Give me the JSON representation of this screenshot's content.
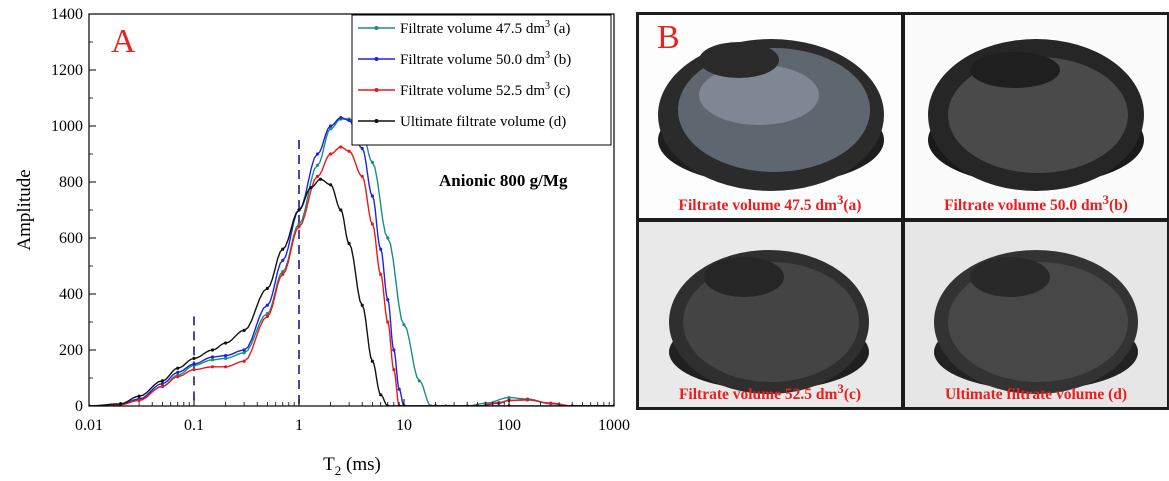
{
  "chart_data": {
    "type": "line",
    "panel_label": "A",
    "xlabel_main": "T",
    "xlabel_sub": "2",
    "xlabel_unit": " (ms)",
    "ylabel": "Amplitude",
    "xscale": "log",
    "xlim": [
      0.01,
      1000
    ],
    "ylim": [
      0,
      1400
    ],
    "xticks": [
      0.01,
      0.1,
      1,
      10,
      100,
      1000
    ],
    "xtick_labels": [
      "0.01",
      "0.1",
      "1",
      "10",
      "100",
      "1000"
    ],
    "yticks": [
      0,
      200,
      400,
      600,
      800,
      1000,
      1200,
      1400
    ],
    "ytick_labels": [
      "0",
      "200",
      "400",
      "600",
      "800",
      "1000",
      "1200",
      "1400"
    ],
    "annotation": "Anionic 800 g/Mg",
    "legend_position": "top-right",
    "reference_lines_x": [
      0.1,
      1
    ],
    "series": [
      {
        "name_main": "Filtrate volume 47.5 dm",
        "name_sup": "3",
        "name_tail": " (a)",
        "color": "#168f86",
        "x": [
          0.01,
          0.02,
          0.03,
          0.05,
          0.07,
          0.1,
          0.15,
          0.2,
          0.3,
          0.5,
          0.7,
          1,
          1.5,
          2,
          2.5,
          3,
          4,
          5,
          7,
          10,
          14,
          18,
          25,
          40,
          60,
          100,
          150,
          250,
          400,
          1000
        ],
        "y": [
          0,
          5,
          25,
          70,
          110,
          145,
          165,
          170,
          190,
          330,
          480,
          650,
          860,
          990,
          1025,
          1025,
          975,
          870,
          600,
          290,
          90,
          0,
          0,
          0,
          10,
          30,
          25,
          8,
          0,
          0
        ]
      },
      {
        "name_main": "Filtrate volume 50.0 dm",
        "name_sup": "3",
        "name_tail": " (b)",
        "color": "#1c22e3",
        "x": [
          0.01,
          0.02,
          0.03,
          0.05,
          0.07,
          0.1,
          0.15,
          0.2,
          0.3,
          0.5,
          0.7,
          1,
          1.5,
          2,
          2.5,
          3,
          4,
          5,
          6,
          7,
          8,
          9,
          10,
          20,
          50,
          80,
          100,
          150,
          250,
          400,
          1000
        ],
        "y": [
          0,
          5,
          25,
          80,
          120,
          150,
          175,
          180,
          200,
          360,
          520,
          700,
          900,
          1000,
          1030,
          1020,
          920,
          750,
          560,
          380,
          200,
          60,
          0,
          0,
          0,
          10,
          20,
          22,
          10,
          0,
          0
        ]
      },
      {
        "name_main": "Filtrate volume 52.5 dm",
        "name_sup": "3",
        "name_tail": " (c)",
        "color": "#e81a1a",
        "x": [
          0.01,
          0.02,
          0.03,
          0.05,
          0.07,
          0.1,
          0.15,
          0.2,
          0.3,
          0.5,
          0.7,
          1,
          1.5,
          2,
          2.5,
          3,
          4,
          5,
          6,
          7,
          8,
          9,
          20,
          50,
          80,
          100,
          150,
          250,
          400,
          1000
        ],
        "y": [
          0,
          5,
          20,
          70,
          105,
          130,
          140,
          140,
          160,
          320,
          470,
          640,
          820,
          900,
          925,
          910,
          820,
          650,
          470,
          300,
          130,
          0,
          0,
          0,
          12,
          20,
          22,
          10,
          0,
          0
        ]
      },
      {
        "name_main": "Ultimate filtrate volume (d)",
        "name_sup": "",
        "name_tail": "",
        "color": "#111111",
        "x": [
          0.01,
          0.02,
          0.03,
          0.05,
          0.07,
          0.1,
          0.15,
          0.2,
          0.3,
          0.5,
          0.7,
          1,
          1.3,
          1.6,
          2,
          2.5,
          3,
          4,
          5,
          6,
          7,
          10,
          100,
          1000
        ],
        "y": [
          0,
          8,
          35,
          90,
          135,
          170,
          200,
          225,
          270,
          420,
          560,
          700,
          780,
          810,
          790,
          700,
          580,
          360,
          160,
          40,
          0,
          0,
          0,
          0
        ]
      }
    ]
  },
  "panel_b": {
    "label": "B",
    "photos": [
      {
        "caption_main": "Filtrate volume 47.5 dm",
        "caption_sup": "3",
        "caption_tail": "(a)"
      },
      {
        "caption_main": "Filtrate volume 50.0 dm",
        "caption_sup": "3",
        "caption_tail": "(b)"
      },
      {
        "caption_main": "Filtrate volume 52.5 dm",
        "caption_sup": "3",
        "caption_tail": "(c)"
      },
      {
        "caption_main": "Ultimate filtrate volume (d)",
        "caption_sup": "",
        "caption_tail": ""
      }
    ]
  }
}
